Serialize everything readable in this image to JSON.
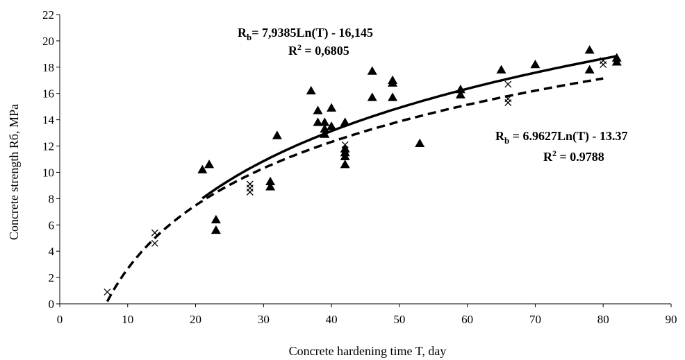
{
  "chart_data": {
    "type": "scatter",
    "xlabel": "Concrete hardening time T, day",
    "ylabel": "Concrete strength Rб, MPa",
    "xlim": [
      0,
      90
    ],
    "ylim": [
      0,
      22
    ],
    "x_ticks": [
      "0",
      "10",
      "20",
      "30",
      "40",
      "50",
      "60",
      "70",
      "80",
      "90"
    ],
    "y_ticks": [
      "0",
      "2",
      "4",
      "6",
      "8",
      "10",
      "12",
      "14",
      "16",
      "18",
      "20",
      "22"
    ],
    "grid": false,
    "series": [
      {
        "marker": "triangle",
        "points": [
          [
            21,
            10.2
          ],
          [
            22,
            10.6
          ],
          [
            23,
            6.4
          ],
          [
            23,
            5.6
          ],
          [
            31,
            9.3
          ],
          [
            31,
            8.9
          ],
          [
            32,
            12.8
          ],
          [
            37,
            16.2
          ],
          [
            38,
            14.7
          ],
          [
            38,
            13.8
          ],
          [
            39,
            13.8
          ],
          [
            39,
            13.3
          ],
          [
            39,
            12.9
          ],
          [
            40,
            14.9
          ],
          [
            40,
            13.5
          ],
          [
            42,
            13.8
          ],
          [
            42,
            11.8
          ],
          [
            42,
            11.5
          ],
          [
            42,
            11.2
          ],
          [
            42,
            10.6
          ],
          [
            46,
            17.7
          ],
          [
            46,
            15.7
          ],
          [
            49,
            17.0
          ],
          [
            49,
            16.8
          ],
          [
            49,
            15.7
          ],
          [
            53,
            12.2
          ],
          [
            59,
            16.3
          ],
          [
            59,
            15.9
          ],
          [
            65,
            17.8
          ],
          [
            70,
            18.2
          ],
          [
            78,
            19.3
          ],
          [
            78,
            17.8
          ],
          [
            82,
            18.7
          ],
          [
            82,
            18.4
          ]
        ],
        "trendline": {
          "style": "solid",
          "a": 7.9385,
          "b": -16.145,
          "x_range": [
            21,
            82
          ],
          "equation": "= 7,9385Ln(T) - 16,145",
          "r2": "= 0,6805"
        }
      },
      {
        "marker": "x",
        "points": [
          [
            7,
            0.9
          ],
          [
            14,
            5.4
          ],
          [
            14,
            4.6
          ],
          [
            28,
            9.1
          ],
          [
            28,
            8.8
          ],
          [
            28,
            8.5
          ],
          [
            42,
            12.1
          ],
          [
            42,
            11.7
          ],
          [
            42,
            11.3
          ],
          [
            66,
            16.7
          ],
          [
            66,
            15.6
          ],
          [
            66,
            15.3
          ],
          [
            80,
            18.5
          ],
          [
            80,
            18.2
          ]
        ],
        "trendline": {
          "style": "dashed",
          "a": 6.9627,
          "b": -13.37,
          "x_range": [
            7,
            80
          ],
          "equation": " = 6.9627Ln(T) - 13.37",
          "r2": "= 0.9788"
        }
      }
    ]
  },
  "annotations": {
    "eq1_R": "R",
    "eq1_sub": "b",
    "eq1_text": "= 7,9385Ln(T) - 16,145",
    "eq1_r2_R": "R",
    "eq1_r2_sup": "2",
    "eq1_r2_text": " = 0,6805",
    "eq2_R": "R",
    "eq2_sub": "b",
    "eq2_text": " = 6.9627Ln(T) - 13.37",
    "eq2_r2_R": "R",
    "eq2_r2_sup": "2",
    "eq2_r2_text": " = 0.9788"
  }
}
